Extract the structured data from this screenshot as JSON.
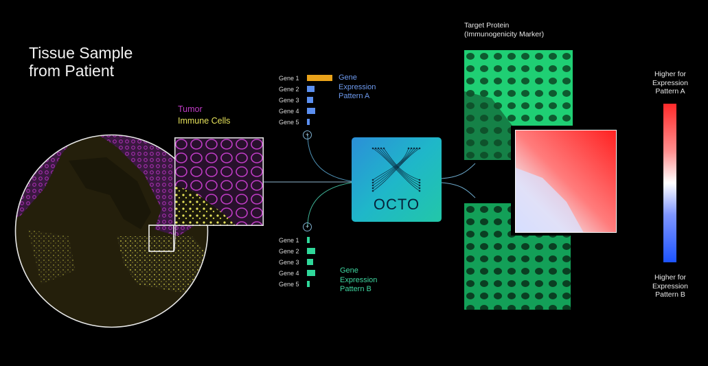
{
  "title": {
    "line1": "Tissue Sample",
    "line2": "from Patient"
  },
  "legend": {
    "tumor": "Tumor",
    "immune": "Immune Cells"
  },
  "pattern_a": {
    "line1": "Gene",
    "line2": "Expression",
    "line3": "Pattern A",
    "genes": [
      {
        "label": "Gene 1",
        "value": 1.0,
        "color": "#e9a21a"
      },
      {
        "label": "Gene 2",
        "value": 0.3,
        "color": "#5b8ff0"
      },
      {
        "label": "Gene 3",
        "value": 0.25,
        "color": "#5b8ff0"
      },
      {
        "label": "Gene 4",
        "value": 0.33,
        "color": "#5b8ff0"
      },
      {
        "label": "Gene 5",
        "value": 0.1,
        "color": "#5b8ff0"
      }
    ]
  },
  "pattern_b": {
    "line1": "Gene",
    "line2": "Expression",
    "line3": "Pattern B",
    "genes": [
      {
        "label": "Gene 1",
        "value": 0.1,
        "color": "#2fd89a"
      },
      {
        "label": "Gene 2",
        "value": 0.33,
        "color": "#2fd89a"
      },
      {
        "label": "Gene 3",
        "value": 0.25,
        "color": "#2fd89a"
      },
      {
        "label": "Gene 4",
        "value": 0.33,
        "color": "#2fd89a"
      },
      {
        "label": "Gene 5",
        "value": 0.1,
        "color": "#2fd89a"
      }
    ]
  },
  "model": {
    "name": "OCTO"
  },
  "target": {
    "line1": "Target Protein",
    "line2": "(Immunogenicity Marker)"
  },
  "scale": {
    "top": [
      "Higher for",
      "Expression",
      "Pattern A"
    ],
    "bottom": [
      "Higher for",
      "Expression",
      "Pattern B"
    ]
  },
  "colors": {
    "tumor": "#c03cc6",
    "immune": "#e6e25a",
    "stain": "#1ed879",
    "high": "#ff2a2a",
    "low": "#1d54ff"
  }
}
